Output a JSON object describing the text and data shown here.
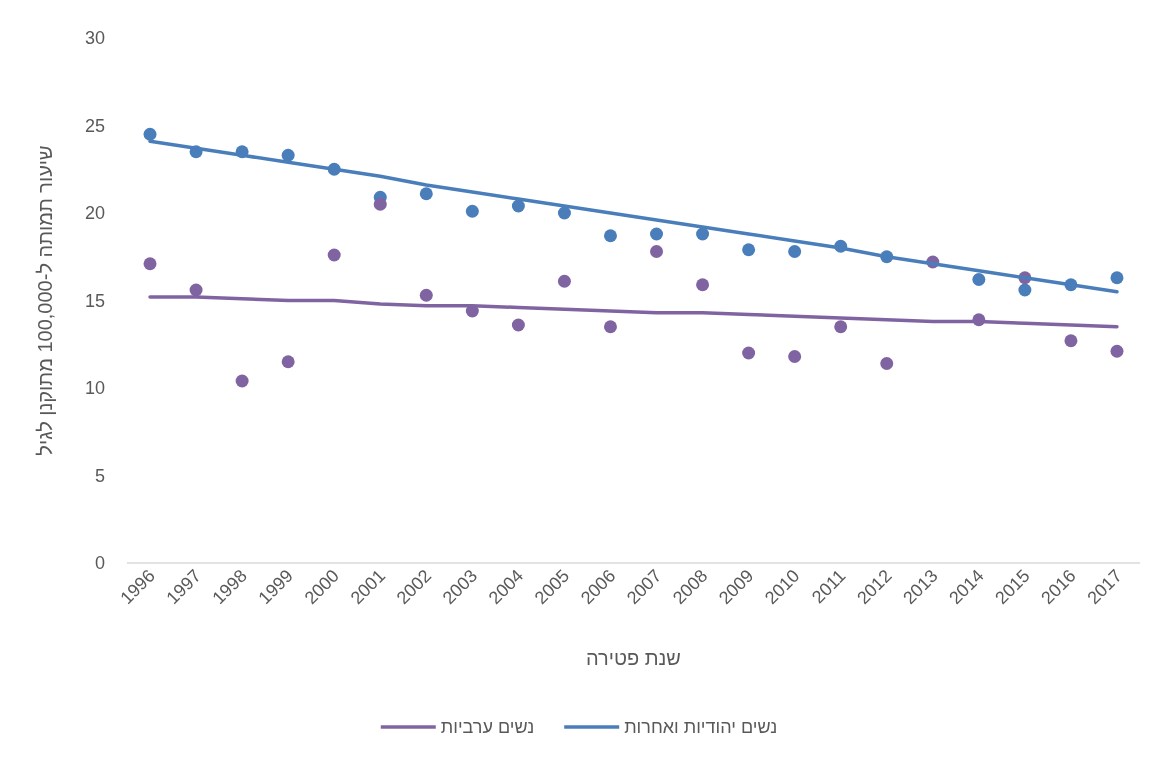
{
  "chart_data": {
    "type": "scatter",
    "xlabel": "שנת פטירה",
    "ylabel": "שיעור תמותה ל-100,000 מתוקנן לגיל",
    "xlim": [
      1995.5,
      2017.5
    ],
    "xticks": [
      1996,
      1997,
      1998,
      1999,
      2000,
      2001,
      2002,
      2003,
      2004,
      2005,
      2006,
      2007,
      2008,
      2009,
      2010,
      2011,
      2012,
      2013,
      2014,
      2015,
      2016,
      2017
    ],
    "ylim": [
      0,
      30
    ],
    "yticks": [
      0,
      5,
      10,
      15,
      20,
      25,
      30
    ],
    "x": [
      1996,
      1997,
      1998,
      1999,
      2000,
      2001,
      2002,
      2003,
      2004,
      2005,
      2006,
      2007,
      2008,
      2009,
      2010,
      2011,
      2012,
      2013,
      2014,
      2015,
      2016,
      2017
    ],
    "grid": false,
    "legend": "bottom",
    "series": [
      {
        "marker": "circle",
        "color": "#4a7ebb",
        "values": [
          24.5,
          23.5,
          23.5,
          23.3,
          22.5,
          20.9,
          21.1,
          20.1,
          20.4,
          20.0,
          18.7,
          18.8,
          18.8,
          17.9,
          17.8,
          18.1,
          17.5,
          null,
          16.2,
          15.6,
          15.9,
          16.3
        ]
      },
      {
        "marker": "circle",
        "color": "#8064a2",
        "values": [
          17.1,
          15.6,
          10.4,
          11.5,
          17.6,
          20.5,
          15.3,
          14.4,
          13.6,
          16.1,
          13.5,
          17.8,
          15.9,
          12.0,
          11.8,
          13.5,
          11.4,
          17.2,
          13.9,
          16.3,
          12.7,
          12.1
        ]
      },
      {
        "type": "line",
        "name": "נשים ערביות",
        "color": "#8064a2",
        "values": [
          15.2,
          15.2,
          15.1,
          15.0,
          15.0,
          14.8,
          14.7,
          14.7,
          14.6,
          14.5,
          14.4,
          14.3,
          14.3,
          14.2,
          14.1,
          14.0,
          13.9,
          13.8,
          13.8,
          13.7,
          13.6,
          13.5
        ]
      },
      {
        "type": "line",
        "name": "נשים יהודיות ואחרות",
        "color": "#4a7ebb",
        "values": [
          24.1,
          23.7,
          23.3,
          22.9,
          22.5,
          22.1,
          21.6,
          21.2,
          20.8,
          20.4,
          20.0,
          19.6,
          19.2,
          18.8,
          18.4,
          18.0,
          17.5,
          17.1,
          16.7,
          16.3,
          15.9,
          15.5
        ]
      }
    ]
  }
}
